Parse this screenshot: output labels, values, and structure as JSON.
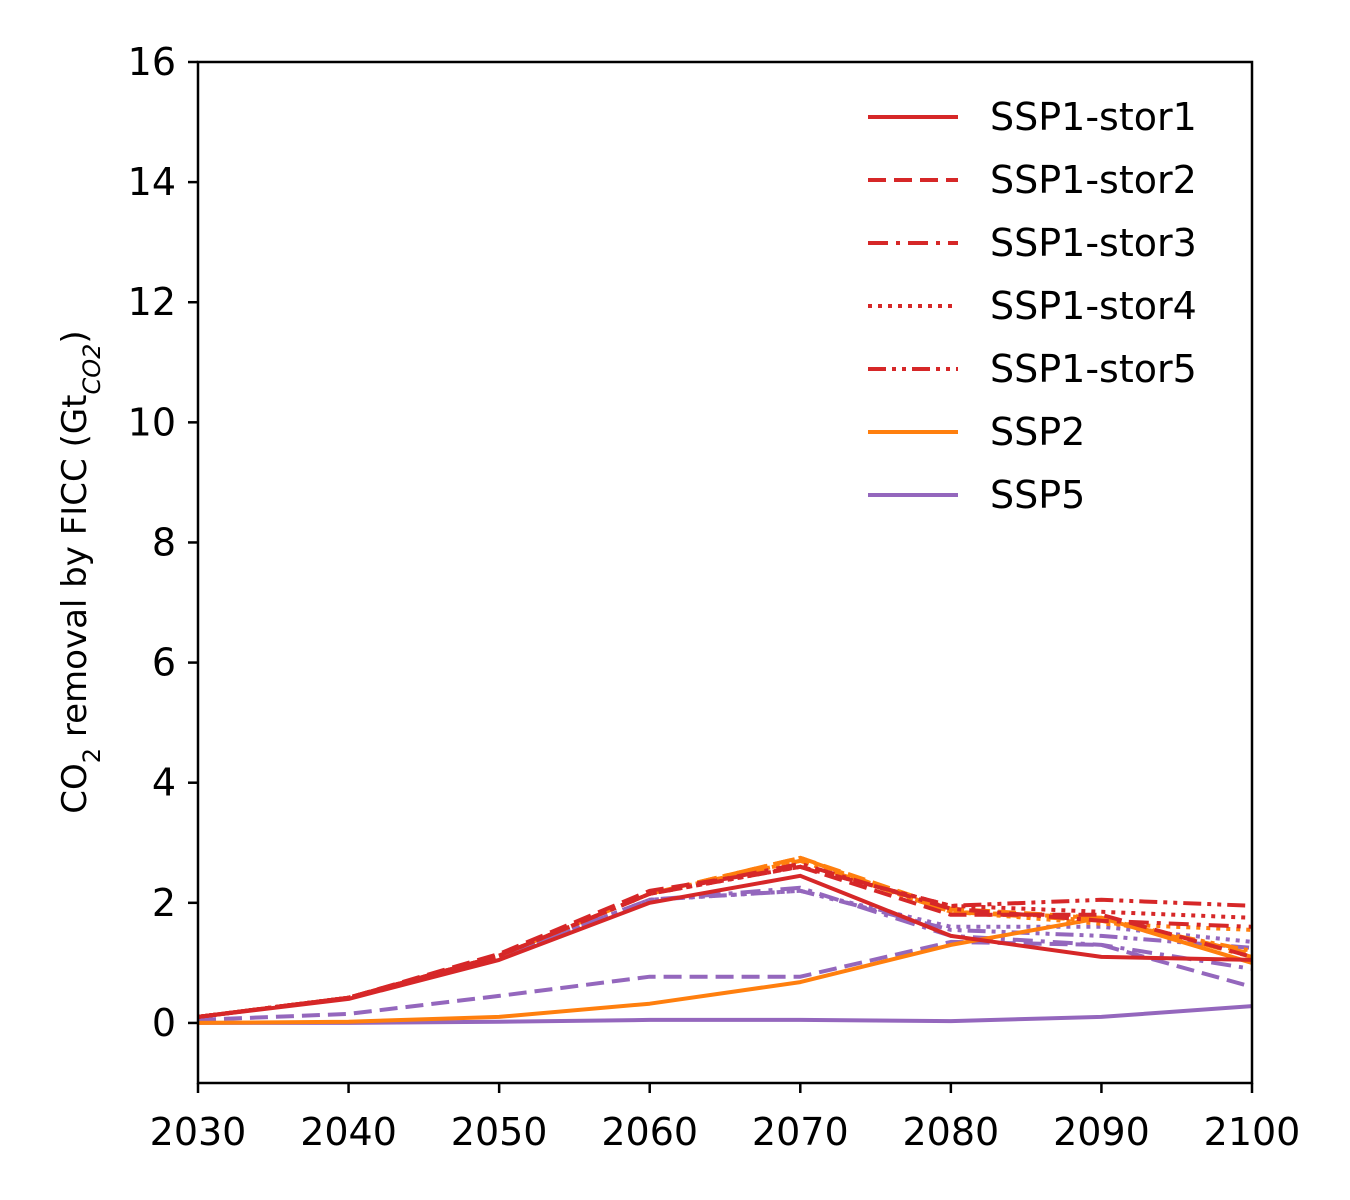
{
  "chart_data": {
    "type": "line",
    "xlabel": "",
    "ylabel": {
      "prefix": "CO",
      "prefix_sub": "2",
      "main": " removal by FICC (Gt",
      "unit_sub": "CO2",
      "suffix": ")"
    },
    "xlim": [
      2030,
      2100
    ],
    "ylim": [
      -1,
      16
    ],
    "xticks": [
      2030,
      2040,
      2050,
      2060,
      2070,
      2080,
      2090,
      2100
    ],
    "yticks": [
      0,
      2,
      4,
      6,
      8,
      10,
      12,
      14,
      16
    ],
    "grid": false,
    "legend_position": "top-right",
    "legend": [
      {
        "label": "SSP1-stor1",
        "color": "#d62728",
        "dash": "solid"
      },
      {
        "label": "SSP1-stor2",
        "color": "#d62728",
        "dash": "dashed"
      },
      {
        "label": "SSP1-stor3",
        "color": "#d62728",
        "dash": "dashdot"
      },
      {
        "label": "SSP1-stor4",
        "color": "#d62728",
        "dash": "dotted"
      },
      {
        "label": "SSP1-stor5",
        "color": "#d62728",
        "dash": "dashdotdot"
      },
      {
        "label": "SSP2",
        "color": "#ff7f0e",
        "dash": "solid"
      },
      {
        "label": "SSP5",
        "color": "#9467bd",
        "dash": "solid"
      }
    ],
    "x": [
      2030,
      2040,
      2050,
      2060,
      2070,
      2080,
      2090,
      2100
    ],
    "series": [
      {
        "name": "SSP1-stor1",
        "color": "#d62728",
        "dash": "solid",
        "values": [
          0.1,
          0.4,
          1.05,
          2.0,
          2.45,
          1.45,
          1.1,
          1.05
        ]
      },
      {
        "name": "SSP1-stor2",
        "color": "#d62728",
        "dash": "dashed",
        "values": [
          0.1,
          0.42,
          1.15,
          2.2,
          2.6,
          1.8,
          1.8,
          1.1
        ]
      },
      {
        "name": "SSP1-stor3",
        "color": "#d62728",
        "dash": "dashdot",
        "values": [
          0.1,
          0.42,
          1.12,
          2.15,
          2.65,
          1.9,
          1.7,
          1.6
        ]
      },
      {
        "name": "SSP1-stor4",
        "color": "#d62728",
        "dash": "dotted",
        "values": [
          0.1,
          0.42,
          1.12,
          2.15,
          2.6,
          1.95,
          1.85,
          1.75
        ]
      },
      {
        "name": "SSP1-stor5",
        "color": "#d62728",
        "dash": "dashdotdot",
        "values": [
          0.1,
          0.42,
          1.12,
          2.15,
          2.6,
          1.95,
          2.05,
          1.95
        ]
      },
      {
        "color": "#ff7f0e",
        "dash": "solid",
        "values": [
          0.0,
          0.02,
          0.1,
          0.32,
          0.68,
          1.3,
          1.75,
          1.0
        ]
      },
      {
        "color": "#ff7f0e",
        "dash": "dashed",
        "values": [
          0.1,
          0.42,
          1.12,
          2.15,
          2.75,
          1.9,
          1.75,
          1.15
        ]
      },
      {
        "color": "#ff7f0e",
        "dash": "dashdot",
        "values": [
          0.1,
          0.42,
          1.12,
          2.15,
          2.75,
          1.85,
          1.75,
          1.1
        ]
      },
      {
        "color": "#ff7f0e",
        "dash": "dotted",
        "values": [
          0.1,
          0.42,
          1.12,
          2.15,
          2.7,
          1.85,
          1.65,
          1.55
        ]
      },
      {
        "color": "#ff7f0e",
        "dash": "dashdotdot",
        "values": [
          0.1,
          0.42,
          1.12,
          2.15,
          2.7,
          1.85,
          1.7,
          1.2
        ]
      },
      {
        "color": "#9467bd",
        "dash": "solid",
        "values": [
          0.0,
          0.0,
          0.02,
          0.05,
          0.05,
          0.03,
          0.1,
          0.28
        ]
      },
      {
        "color": "#9467bd",
        "dash": "dashed",
        "values": [
          0.05,
          0.15,
          0.45,
          0.77,
          0.77,
          1.35,
          1.3,
          0.6
        ]
      },
      {
        "color": "#9467bd",
        "dash": "dashdot",
        "values": [
          0.1,
          0.42,
          1.1,
          2.05,
          2.25,
          1.45,
          1.3,
          0.9
        ]
      },
      {
        "color": "#9467bd",
        "dash": "dotted",
        "values": [
          0.1,
          0.42,
          1.1,
          2.05,
          2.2,
          1.6,
          1.6,
          1.35
        ]
      },
      {
        "color": "#9467bd",
        "dash": "dashdotdot",
        "values": [
          0.1,
          0.42,
          1.1,
          2.05,
          2.2,
          1.55,
          1.45,
          1.25
        ]
      }
    ]
  }
}
